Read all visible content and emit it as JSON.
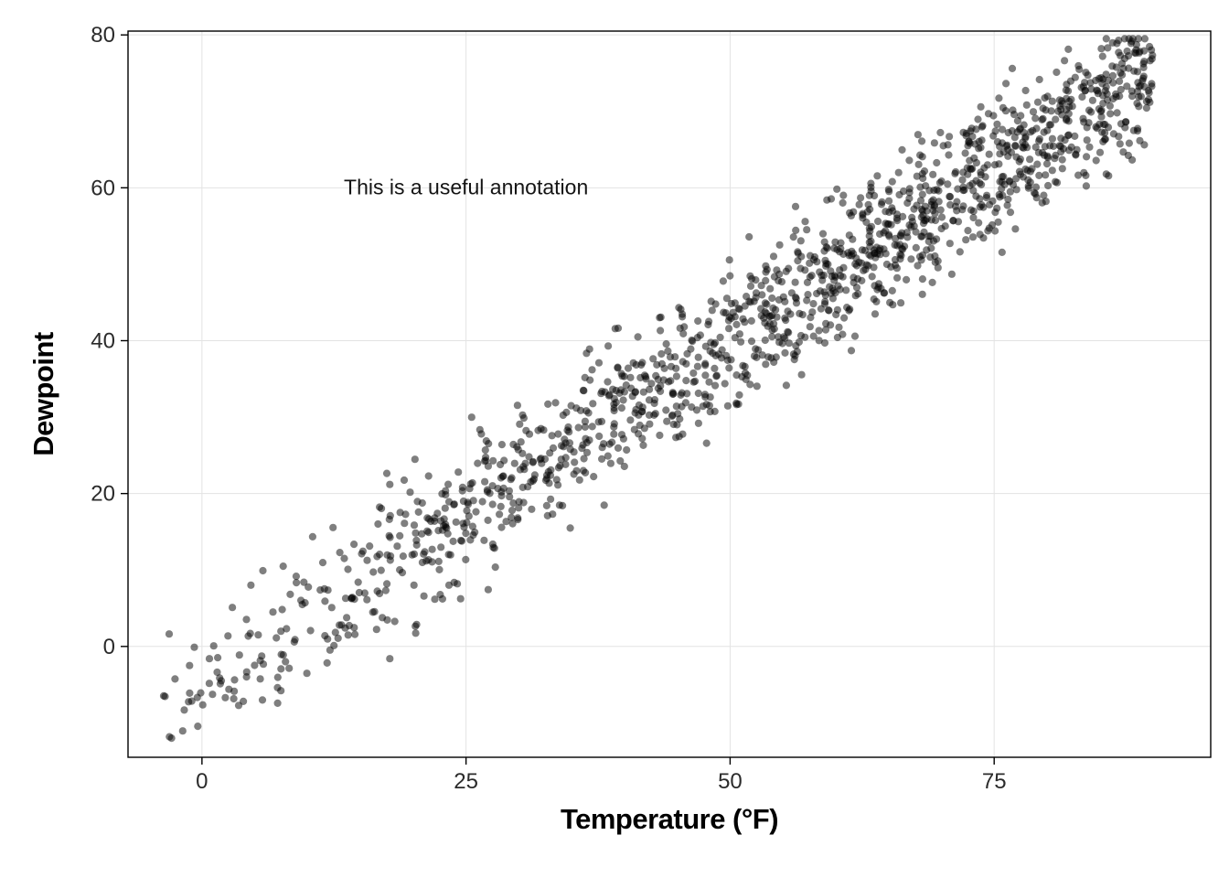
{
  "chart_data": {
    "type": "scatter",
    "title": "",
    "xlabel": "Temperature (°F)",
    "ylabel": "Dewpoint",
    "xlim": [
      -7,
      95.5
    ],
    "ylim": [
      -14.5,
      80.5
    ],
    "x_ticks": [
      0,
      25,
      50,
      75
    ],
    "y_ticks": [
      0,
      20,
      40,
      60,
      80
    ],
    "grid": true,
    "legend": "none",
    "annotation": {
      "text": "This is a useful annotation",
      "x": 25,
      "y": 60
    },
    "points": {
      "n": 1450,
      "seed": 7,
      "x_min": -4.5,
      "x_max": 90,
      "x_skew": 0.62,
      "slope": 0.9,
      "intercept": -5,
      "noise_sd": 4.6,
      "y_clamp": [
        -12,
        79.5
      ]
    },
    "style": {
      "point_color": "#000000",
      "point_opacity": 0.5,
      "point_radius": 4.1,
      "grid_color": "#e3e3e3",
      "panel_border_color": "#000000",
      "tick_color": "#000000",
      "tick_label_color": "#2b2b2b",
      "panel_background": "#ffffff"
    }
  }
}
